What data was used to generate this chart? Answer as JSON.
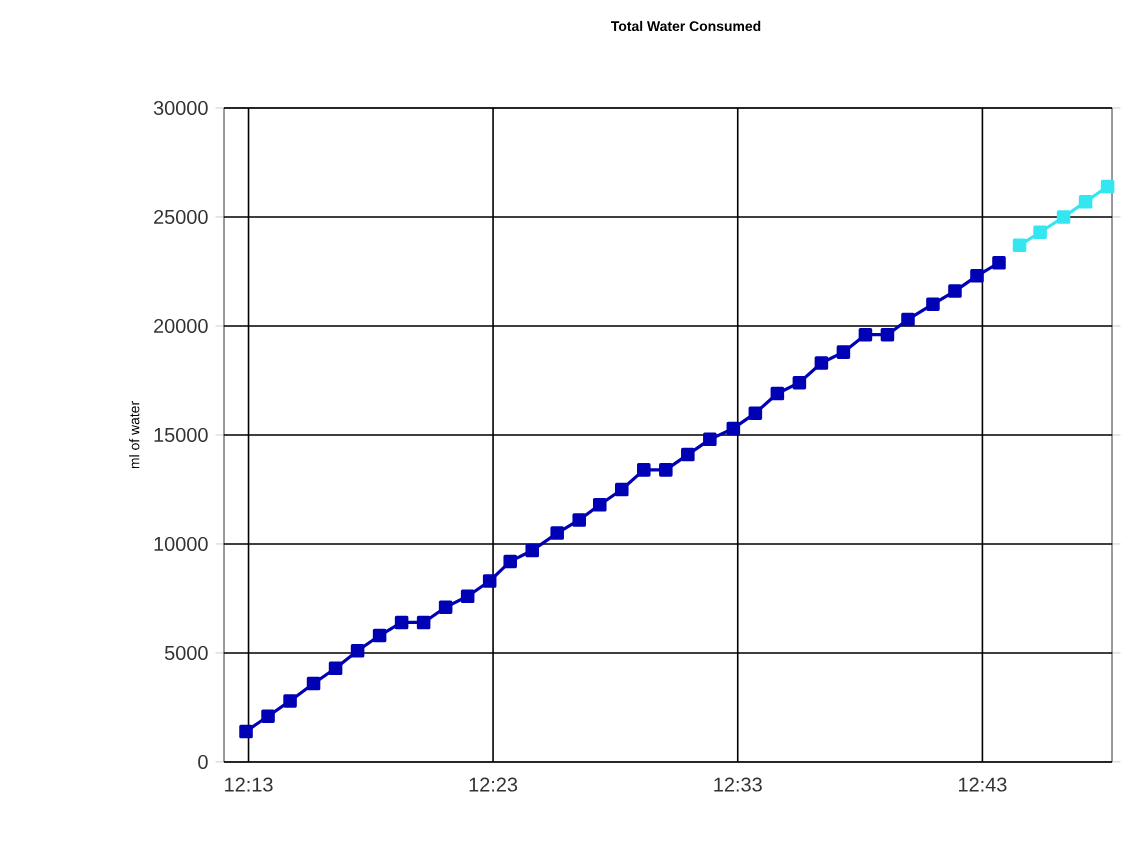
{
  "chart_data": {
    "type": "line",
    "title": "Total Water Consumed",
    "ylabel": "ml of water",
    "xlim": [
      12.2,
      12.805
    ],
    "ylim": [
      0,
      30000
    ],
    "xticks": [
      {
        "value": 12.2167,
        "label": "12:13"
      },
      {
        "value": 12.3833,
        "label": "12:23"
      },
      {
        "value": 12.55,
        "label": "12:33"
      },
      {
        "value": 12.7167,
        "label": "12:43"
      }
    ],
    "yticks": [
      0,
      5000,
      10000,
      15000,
      20000,
      25000,
      30000
    ],
    "grid": true,
    "marker": "square",
    "line_style": "solid",
    "series": [
      {
        "color": "#0000b4",
        "x": [
          12.215,
          12.23,
          12.245,
          12.261,
          12.276,
          12.291,
          12.306,
          12.321,
          12.336,
          12.351,
          12.366,
          12.381,
          12.395,
          12.41,
          12.427,
          12.442,
          12.456,
          12.471,
          12.486,
          12.501,
          12.516,
          12.531,
          12.547,
          12.562,
          12.577,
          12.592,
          12.607,
          12.622,
          12.637,
          12.652,
          12.666,
          12.683,
          12.698,
          12.713,
          12.728
        ],
        "values": [
          1400,
          2100,
          2800,
          3600,
          4300,
          5100,
          5800,
          6400,
          6400,
          7100,
          7600,
          8300,
          9200,
          9700,
          10500,
          11100,
          11800,
          12500,
          13400,
          13400,
          14100,
          14800,
          15300,
          16000,
          16900,
          17400,
          18300,
          18800,
          19600,
          19600,
          20300,
          21000,
          21600,
          22300,
          22900
        ]
      },
      {
        "color": "#33e6f0",
        "x": [
          12.742,
          12.756,
          12.772,
          12.787,
          12.802
        ],
        "values": [
          23700,
          24300,
          25000,
          25700,
          26400
        ]
      }
    ]
  }
}
